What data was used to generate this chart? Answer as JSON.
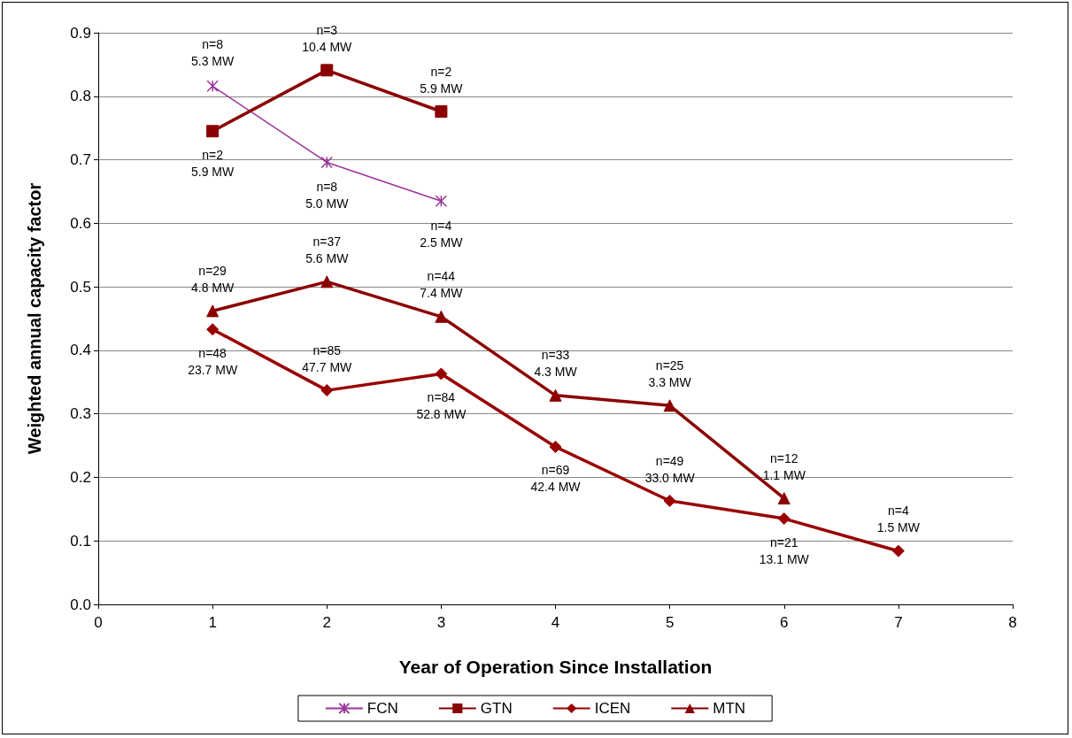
{
  "chart_data": {
    "type": "line",
    "xlabel": "Year of Operation Since Installation",
    "ylabel": "Weighted annual capacity factor",
    "xlim": [
      0,
      8
    ],
    "xticks": [
      0,
      1,
      2,
      3,
      4,
      5,
      6,
      7,
      8
    ],
    "ylim": [
      0,
      0.9
    ],
    "yticks": [
      {
        "value": 0,
        "label": "0.0"
      },
      0.1,
      0.2,
      0.3,
      0.4,
      0.5,
      0.6,
      0.7,
      0.8,
      0.9
    ],
    "grid": "y",
    "legend": "bottom",
    "series": [
      {
        "name": "FCN",
        "color": "#993399",
        "marker": "cross",
        "x": [
          1,
          2,
          3
        ],
        "values": [
          0.816,
          0.696,
          0.635
        ],
        "value_labels": [
          "n=8\n5.3 MW",
          "n=8\n5.0 MW",
          "n=4\n2.5 MW"
        ]
      },
      {
        "name": "GTN",
        "color": "#8b0000",
        "marker": "square",
        "x": [
          1,
          2,
          3
        ],
        "values": [
          0.745,
          0.841,
          0.776
        ],
        "value_labels": [
          "n=2\n5.9 MW",
          "n=3\n10.4 MW",
          "n=2\n5.9 MW"
        ]
      },
      {
        "name": "ICEN",
        "color": "#990000",
        "marker": "diamond",
        "x": [
          1,
          2,
          3,
          4,
          5,
          6,
          7
        ],
        "values": [
          0.433,
          0.337,
          0.363,
          0.248,
          0.163,
          0.135,
          0.084
        ],
        "value_labels": [
          "n=48\n23.7 MW",
          "n=85\n47.7 MW",
          "n=84\n52.8 MW",
          "n=69\n42.4 MW",
          "n=49\n33.0 MW",
          "n=21\n13.1 MW",
          "n=4\n1.5 MW"
        ]
      },
      {
        "name": "MTN",
        "color": "#8b0000",
        "marker": "triangle",
        "x": [
          1,
          2,
          3,
          4,
          5,
          6
        ],
        "values": [
          0.462,
          0.508,
          0.453,
          0.329,
          0.313,
          0.167
        ],
        "value_labels": [
          "n=29\n4.8 MW",
          "n=37\n5.6 MW",
          "n=44\n7.4 MW",
          "n=33\n4.3 MW",
          "n=25\n3.3 MW",
          "n=12\n1.1 MW"
        ]
      }
    ]
  }
}
